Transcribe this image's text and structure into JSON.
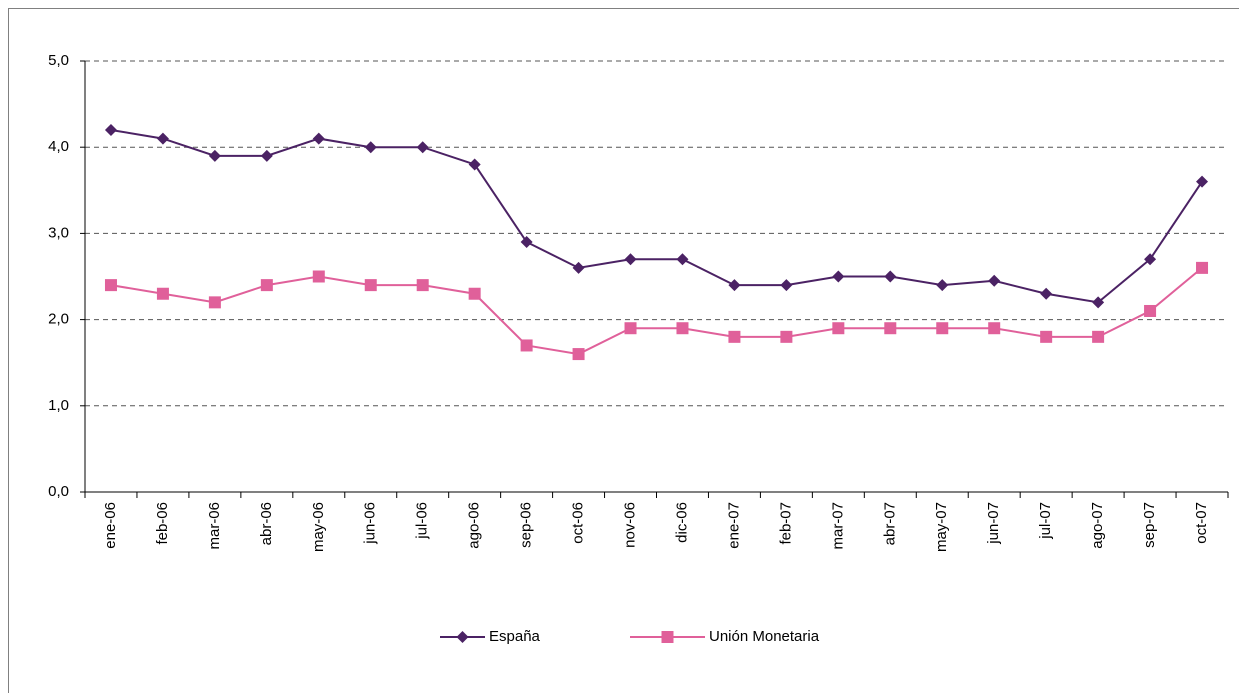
{
  "chart_data": {
    "type": "line",
    "categories": [
      "ene-06",
      "feb-06",
      "mar-06",
      "abr-06",
      "may-06",
      "jun-06",
      "jul-06",
      "ago-06",
      "sep-06",
      "oct-06",
      "nov-06",
      "dic-06",
      "ene-07",
      "feb-07",
      "mar-07",
      "abr-07",
      "may-07",
      "jun-07",
      "jul-07",
      "ago-07",
      "sep-07",
      "oct-07"
    ],
    "series": [
      {
        "name": "España",
        "color": "#4b2264",
        "marker": "diamond",
        "values": [
          4.2,
          4.1,
          3.9,
          3.9,
          4.1,
          4.0,
          4.0,
          3.8,
          2.9,
          2.6,
          2.7,
          2.7,
          2.4,
          2.4,
          2.5,
          2.5,
          2.4,
          2.45,
          2.3,
          2.2,
          2.7,
          3.6
        ]
      },
      {
        "name": "Unión Monetaria",
        "color": "#e0609a",
        "marker": "square",
        "values": [
          2.4,
          2.3,
          2.2,
          2.4,
          2.5,
          2.4,
          2.4,
          2.3,
          1.7,
          1.6,
          1.9,
          1.9,
          1.8,
          1.8,
          1.9,
          1.9,
          1.9,
          1.9,
          1.8,
          1.8,
          2.1,
          2.6
        ]
      }
    ],
    "ylim": [
      0,
      5
    ],
    "yticks": [
      {
        "value": 0,
        "label": "0,0"
      },
      {
        "value": 1,
        "label": "1,0"
      },
      {
        "value": 2,
        "label": "2,0"
      },
      {
        "value": 3,
        "label": "3,0"
      },
      {
        "value": 4,
        "label": "4,0"
      },
      {
        "value": 5,
        "label": "5,0"
      }
    ],
    "grid": true,
    "legend": "bottom"
  }
}
